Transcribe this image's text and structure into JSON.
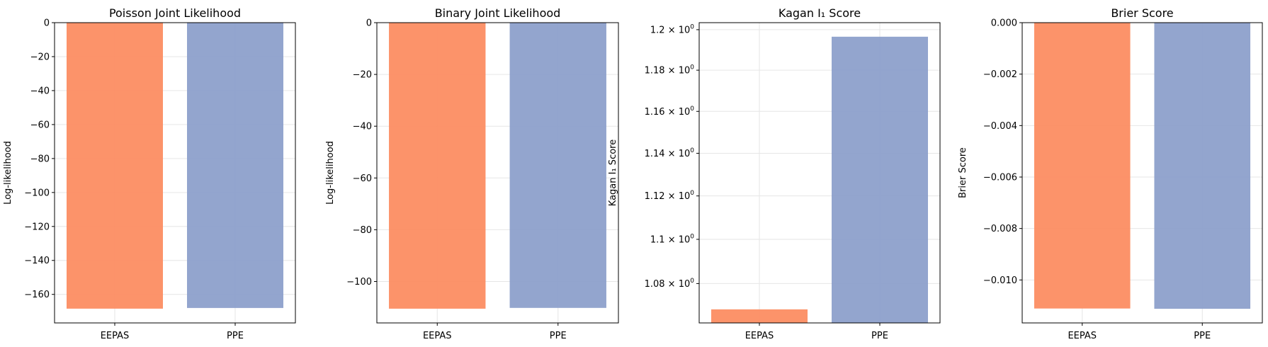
{
  "colors": {
    "eepas": "#fc8d62",
    "ppe": "#8da0cb",
    "grid": "#e6e6e6",
    "axis": "#000000"
  },
  "chart_data": [
    {
      "type": "bar",
      "title": "Poisson Joint Likelihood",
      "xlabel": "",
      "ylabel": "Log-likelihood",
      "categories": [
        "EEPAS",
        "PPE"
      ],
      "values": [
        -168.4,
        -168.0
      ],
      "ylim": [
        -176.8,
        0
      ],
      "yticks": [
        0,
        -20,
        -40,
        -60,
        -80,
        -100,
        -120,
        -140,
        -160
      ],
      "ytick_labels": [
        "0",
        "−20",
        "−40",
        "−60",
        "−80",
        "−100",
        "−120",
        "−140",
        "−160"
      ],
      "yscale": "linear",
      "grid": true
    },
    {
      "type": "bar",
      "title": "Binary Joint Likelihood",
      "xlabel": "",
      "ylabel": "Log-likelihood",
      "categories": [
        "EEPAS",
        "PPE"
      ],
      "values": [
        -110.5,
        -110.2
      ],
      "ylim": [
        -116.0,
        0
      ],
      "yticks": [
        0,
        -20,
        -40,
        -60,
        -80,
        -100
      ],
      "ytick_labels": [
        "0",
        "−20",
        "−40",
        "−60",
        "−80",
        "−100"
      ],
      "yscale": "linear",
      "grid": true
    },
    {
      "type": "bar",
      "title": "Kagan I₁ Score",
      "xlabel": "",
      "ylabel": "Kagan I₁ Score",
      "categories": [
        "EEPAS",
        "PPE"
      ],
      "values": [
        1.0685,
        1.1965
      ],
      "ylim": [
        1.0625,
        1.2035
      ],
      "yticks": [
        1.08,
        1.1,
        1.12,
        1.14,
        1.16,
        1.18,
        1.2
      ],
      "ytick_mantissas": [
        "1.08",
        "1.1",
        "1.12",
        "1.14",
        "1.16",
        "1.18",
        "1.2"
      ],
      "ytick_base": "× 10",
      "ytick_exponent": "0",
      "yscale": "log",
      "grid": true
    },
    {
      "type": "bar",
      "title": "Brier Score",
      "xlabel": "",
      "ylabel": "Brier Score",
      "categories": [
        "EEPAS",
        "PPE"
      ],
      "values": [
        -0.01111,
        -0.01112
      ],
      "ylim": [
        -0.01167,
        0.0
      ],
      "yticks": [
        0.0,
        -0.002,
        -0.004,
        -0.006,
        -0.008,
        -0.01
      ],
      "ytick_labels": [
        "0.000",
        "−0.002",
        "−0.004",
        "−0.006",
        "−0.008",
        "−0.010"
      ],
      "yscale": "linear",
      "grid": true
    }
  ]
}
